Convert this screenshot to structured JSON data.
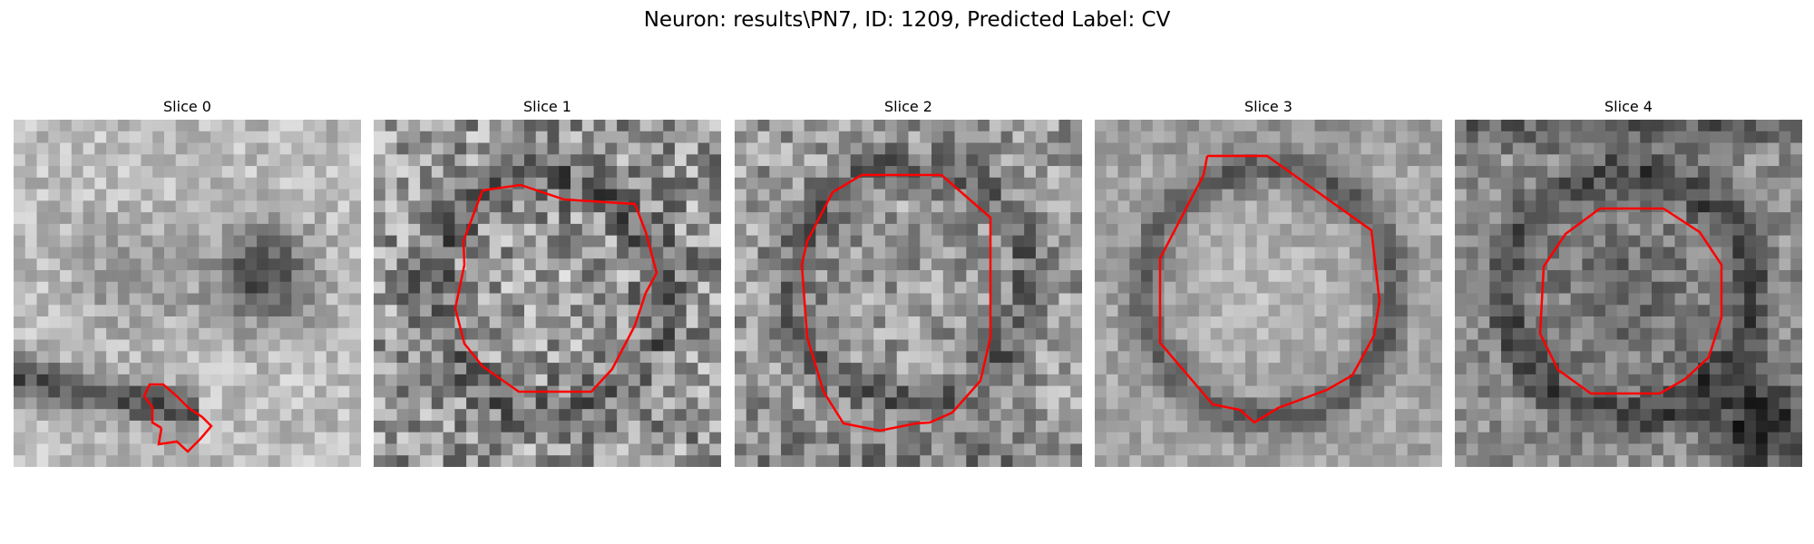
{
  "figure": {
    "title": "Neuron: results\\PN7, ID: 1209, Predicted Label: CV"
  },
  "slices": [
    {
      "title": "Slice 0"
    },
    {
      "title": "Slice 1"
    },
    {
      "title": "Slice 2"
    },
    {
      "title": "Slice 3"
    },
    {
      "title": "Slice 4"
    }
  ],
  "colors": {
    "contour": "#ff0000",
    "background": "#ffffff"
  }
}
